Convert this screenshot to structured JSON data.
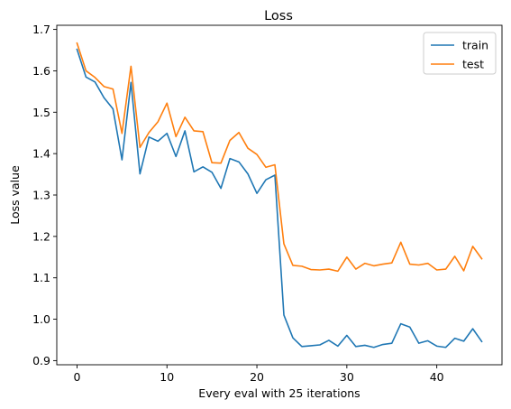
{
  "chart_data": {
    "type": "line",
    "title": "Loss",
    "xlabel": "Every eval with 25 iterations",
    "ylabel": "Loss value",
    "xlim": [
      -2.25,
      47.25
    ],
    "ylim": [
      0.89,
      1.71
    ],
    "xticks": [
      0,
      10,
      20,
      30,
      40
    ],
    "yticks": [
      0.9,
      1.0,
      1.1,
      1.2,
      1.3,
      1.4,
      1.5,
      1.6,
      1.7
    ],
    "ytick_labels": [
      "0.9",
      "1.0",
      "1.1",
      "1.2",
      "1.3",
      "1.4",
      "1.5",
      "1.6",
      "1.7"
    ],
    "grid": false,
    "legend_position": "top-right",
    "x": [
      0,
      1,
      2,
      3,
      4,
      5,
      6,
      7,
      8,
      9,
      10,
      11,
      12,
      13,
      14,
      15,
      16,
      17,
      18,
      19,
      20,
      21,
      22,
      23,
      24,
      25,
      26,
      27,
      28,
      29,
      30,
      31,
      32,
      33,
      34,
      35,
      36,
      37,
      38,
      39,
      40,
      41,
      42,
      43,
      44,
      45
    ],
    "series": [
      {
        "name": "train",
        "color": "#1f77b4",
        "values": [
          1.652,
          1.585,
          1.573,
          1.535,
          1.508,
          1.385,
          1.572,
          1.351,
          1.44,
          1.43,
          1.449,
          1.393,
          1.455,
          1.356,
          1.368,
          1.355,
          1.316,
          1.388,
          1.38,
          1.351,
          1.304,
          1.337,
          1.348,
          1.01,
          0.955,
          0.934,
          0.936,
          0.938,
          0.949,
          0.935,
          0.961,
          0.934,
          0.937,
          0.932,
          0.939,
          0.942,
          0.989,
          0.981,
          0.942,
          0.948,
          0.935,
          0.932,
          0.954,
          0.947,
          0.977,
          0.946
        ]
      },
      {
        "name": "test",
        "color": "#ff7f0e",
        "values": [
          1.667,
          1.6,
          1.584,
          1.562,
          1.556,
          1.449,
          1.611,
          1.415,
          1.451,
          1.477,
          1.522,
          1.441,
          1.488,
          1.455,
          1.453,
          1.378,
          1.377,
          1.432,
          1.451,
          1.413,
          1.398,
          1.367,
          1.373,
          1.182,
          1.13,
          1.128,
          1.12,
          1.119,
          1.121,
          1.116,
          1.15,
          1.121,
          1.135,
          1.129,
          1.133,
          1.136,
          1.186,
          1.133,
          1.131,
          1.135,
          1.119,
          1.121,
          1.152,
          1.117,
          1.176,
          1.146
        ]
      }
    ]
  }
}
